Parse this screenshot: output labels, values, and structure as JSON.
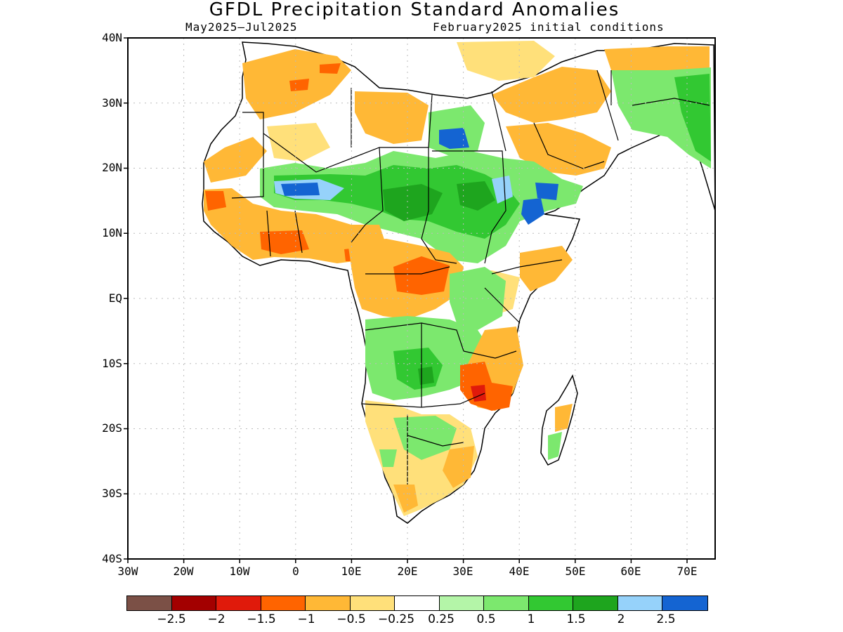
{
  "title": "GFDL Precipitation Standard Anomalies",
  "subtitle_left": "May2025–Jul2025",
  "subtitle_right": "February2025 initial conditions",
  "map": {
    "lat_labels": [
      "40N",
      "30N",
      "20N",
      "10N",
      "EQ",
      "10S",
      "20S",
      "30S",
      "40S"
    ],
    "lon_labels": [
      "30W",
      "20W",
      "10W",
      "0",
      "10E",
      "20E",
      "30E",
      "40E",
      "50E",
      "60E",
      "70E"
    ],
    "lat_range": [
      -40,
      40
    ],
    "lon_range": [
      -30,
      75
    ],
    "grid": true,
    "region": "Africa"
  },
  "colorbar": {
    "colors": [
      "#7b5046",
      "#a30000",
      "#e01a0b",
      "#ff6400",
      "#ffb836",
      "#ffe07a",
      "#ffffff",
      "#b4f5a8",
      "#7ce86e",
      "#32c832",
      "#1ea51e",
      "#96d2fa",
      "#1464d2"
    ],
    "labels": [
      "−2.5",
      "−2",
      "−1.5",
      "−1",
      "−0.5",
      "−0.25",
      "0.25",
      "0.5",
      "1",
      "1.5",
      "2",
      "2.5"
    ]
  }
}
